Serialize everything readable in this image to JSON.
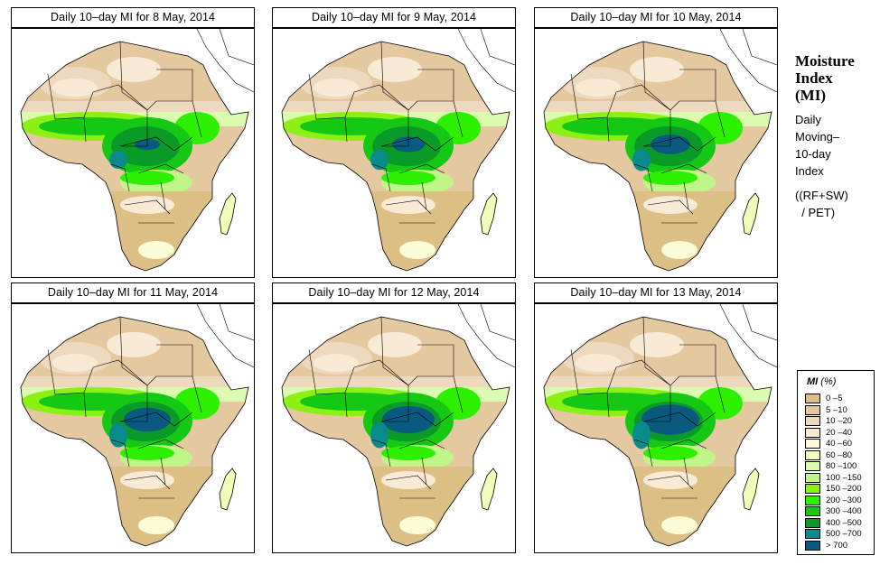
{
  "panels": [
    {
      "title": "Daily 10–day MI for  8 May, 2014",
      "date": "8 May, 2014",
      "wetness": 0.0
    },
    {
      "title": "Daily 10–day MI for  9 May, 2014",
      "date": "9 May, 2014",
      "wetness": 0.2
    },
    {
      "title": "Daily 10–day MI for  10 May, 2014",
      "date": "10 May, 2014",
      "wetness": 0.4
    },
    {
      "title": "Daily 10–day MI for  11 May, 2014",
      "date": "11 May, 2014",
      "wetness": 0.6
    },
    {
      "title": "Daily 10–day MI for  12 May, 2014",
      "date": "12 May, 2014",
      "wetness": 0.75
    },
    {
      "title": "Daily 10–day MI for  13 May, 2014",
      "date": "13 May, 2014",
      "wetness": 0.9
    }
  ],
  "side": {
    "title_lines": [
      "Moisture",
      "Index",
      "(MI)"
    ],
    "desc_lines": [
      "Daily",
      "Moving–",
      "10-day",
      "Index"
    ],
    "formula_lines": [
      "((RF+SW)",
      "  / PET)"
    ]
  },
  "legend": {
    "title_bold": "MI",
    "title_rest": " (%)",
    "items": [
      {
        "label": "0 –5",
        "color": "#dcbf84"
      },
      {
        "label": "5 –10",
        "color": "#e4c9a0"
      },
      {
        "label": "10 –20",
        "color": "#eed9bf"
      },
      {
        "label": "20 –40",
        "color": "#f8ead5"
      },
      {
        "label": "40 –60",
        "color": "#fbfbd8"
      },
      {
        "label": "60 –80",
        "color": "#f3fbb8"
      },
      {
        "label": "80 –100",
        "color": "#dcfab0"
      },
      {
        "label": "100 –150",
        "color": "#c0f58a"
      },
      {
        "label": "150 –200",
        "color": "#8cf014"
      },
      {
        "label": "200 –300",
        "color": "#2cf000"
      },
      {
        "label": "300 –400",
        "color": "#14c814"
      },
      {
        "label": "400 –500",
        "color": "#0a9a28"
      },
      {
        "label": "500 –700",
        "color": "#0a8a8a"
      },
      {
        "label": "> 700",
        "color": "#0a5a80"
      }
    ]
  }
}
